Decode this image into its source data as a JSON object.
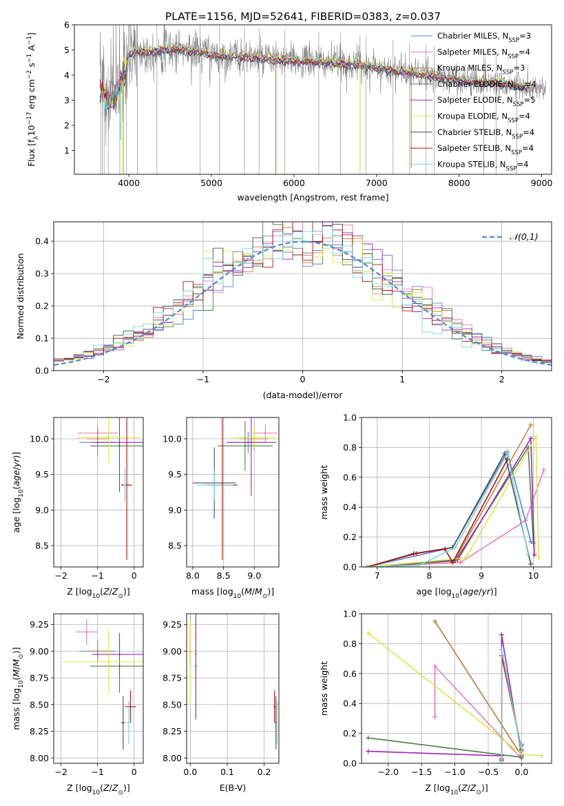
{
  "title": "PLATE=1156, MJD=52641, FIBERID=0383, z=0.037",
  "legend_entries": [
    {
      "key": "chabrier_miles",
      "label": "Chabrier MILES, N",
      "sub": "SSP",
      "tail": "=3",
      "color": "#5b7fdd"
    },
    {
      "key": "salpeter_miles",
      "label": "Salpeter MILES, N",
      "sub": "SSP",
      "tail": "=4",
      "color": "#e87bb1"
    },
    {
      "key": "kroupa_miles",
      "label": "Kroupa MILES, N",
      "sub": "SSP",
      "tail": "=3",
      "color": "#c8823e"
    },
    {
      "key": "chabrier_elodie",
      "label": "Chabrier ELODIE, N",
      "sub": "SSP",
      "tail": "=4",
      "color": "#4e7c4e"
    },
    {
      "key": "salpeter_elodie",
      "label": "Salpeter ELODIE, N",
      "sub": "SSP",
      "tail": "=5",
      "color": "#9b27b0"
    },
    {
      "key": "kroupa_elodie",
      "label": "Kroupa ELODIE, N",
      "sub": "SSP",
      "tail": "=4",
      "color": "#d7e84a"
    },
    {
      "key": "chabrier_stelib",
      "label": "Chabrier STELIB, N",
      "sub": "SSP",
      "tail": "=4",
      "color": "#4a4a4a"
    },
    {
      "key": "salpeter_stelib",
      "label": "Salpeter STELIB, N",
      "sub": "SSP",
      "tail": "=4",
      "color": "#b01010"
    },
    {
      "key": "kroupa_stelib",
      "label": "Kroupa STELIB, N",
      "sub": "SSP",
      "tail": "=4",
      "color": "#7ad8dc"
    }
  ],
  "data_color": "#808080",
  "chart_data": [
    {
      "id": "spectrum",
      "type": "line",
      "xlabel": "wavelength [Angstrom, rest frame]",
      "ylabel": "Flux [f_λ 10^-17 erg cm^-2 s^-1 A^-1]",
      "xlim": [
        3340,
        9120
      ],
      "ylim": [
        0.05,
        6.0
      ],
      "xticks": [
        4000,
        5000,
        6000,
        7000,
        8000,
        9000
      ],
      "yticks": [
        1,
        2,
        3,
        4,
        5,
        6
      ],
      "x_range_data": [
        3650,
        9050
      ],
      "x_range_models": [
        3650,
        8850
      ],
      "legend": "upper right",
      "grid": false,
      "continuum": {
        "x": [
          3650,
          3700,
          3800,
          3900,
          4000,
          4100,
          4200,
          4300,
          4400,
          4500,
          4600,
          4700,
          4800,
          4900,
          5000,
          5200,
          5400,
          5600,
          5800,
          6000,
          6200,
          6400,
          6600,
          6800,
          7000,
          7200,
          7400,
          7600,
          7800,
          8000,
          8200,
          8400,
          8600,
          8800,
          9000
        ],
        "y": [
          3.4,
          3.2,
          3.0,
          3.5,
          4.8,
          5.0,
          4.9,
          4.95,
          5.0,
          5.0,
          5.05,
          5.0,
          4.95,
          4.9,
          4.8,
          4.75,
          4.75,
          4.65,
          4.6,
          4.55,
          4.55,
          4.5,
          4.45,
          4.4,
          4.3,
          4.2,
          4.1,
          4.0,
          3.9,
          3.8,
          3.75,
          3.7,
          3.65,
          3.5,
          3.4
        ]
      },
      "data_lines": [
        3662,
        3680,
        3700,
        3750,
        3890,
        3935,
        3969,
        4102,
        4340,
        4861,
        5100,
        5400,
        5577,
        5890,
        6300,
        6563,
        6800,
        6870,
        7200,
        7400,
        7600,
        7700,
        8300,
        8450,
        8700
      ],
      "model_dips": [
        {
          "model": "kroupa_miles",
          "x": 5780,
          "y": 0.05
        },
        {
          "model": "kroupa_miles",
          "x": 7420,
          "y": 0.3
        },
        {
          "model": "kroupa_elodie",
          "x": 6800,
          "y": 0.05
        },
        {
          "model": "kroupa_elodie",
          "x": 3920,
          "y": 0.05
        },
        {
          "model": "kroupa_stelib",
          "x": 3900,
          "y": 1.4
        }
      ]
    },
    {
      "id": "residuals",
      "type": "histogram",
      "xlabel": "(data-model)/error",
      "ylabel": "Normed distribution",
      "xlim": [
        -2.5,
        2.5
      ],
      "ylim": [
        0,
        0.46
      ],
      "xticks": [
        -2,
        -1,
        0,
        1,
        2
      ],
      "yticks": [
        0.0,
        0.1,
        0.2,
        0.3,
        0.4
      ],
      "bin_width": 0.1,
      "bins": 50,
      "grid": true,
      "legend": "upper right",
      "reference": {
        "label": "𝒩(0,1)",
        "color": "#5b8bd8",
        "style": "dashed"
      }
    },
    {
      "id": "age_vs_Z",
      "type": "scatter",
      "xlabel": "Z [log10(Z/Z⊙)]",
      "ylabel": "age  [log10(age/yr)]",
      "xlim": [
        -2.2,
        0.25
      ],
      "ylim": [
        8.2,
        10.3
      ],
      "xticks": [
        -2,
        -1,
        0
      ],
      "yticks": [
        8.5,
        9.0,
        9.5,
        10.0
      ],
      "grid": true,
      "points": [
        {
          "model": "chabrier_miles",
          "x": -1.0,
          "xerr": 0.5,
          "y": 9.95,
          "yerr": 0.2
        },
        {
          "model": "salpeter_miles",
          "x": -1.0,
          "xerr": 0.55,
          "y": 10.08,
          "yerr": 0.1
        },
        {
          "model": "kroupa_miles",
          "x": -1.0,
          "xerr": 0.3,
          "y": 10.0,
          "yerr": 0.15
        },
        {
          "model": "chabrier_elodie",
          "x": -0.4,
          "xerr": 0.8,
          "y": 9.9,
          "yerr": 0.1
        },
        {
          "model": "salpeter_elodie",
          "x": -0.4,
          "xerr": 0.75,
          "y": 9.95,
          "yerr": 0.7
        },
        {
          "model": "kroupa_elodie",
          "x": -0.7,
          "xerr": 0.85,
          "y": 10.02,
          "yerr": 0.35
        },
        {
          "model": "chabrier_stelib",
          "x": -0.25,
          "xerr": 0.1,
          "y": 9.35,
          "yerr": 0.2
        },
        {
          "model": "salpeter_stelib",
          "x": -0.2,
          "xerr": 0.15,
          "y": 9.35,
          "yerr": 1.05
        },
        {
          "model": "kroupa_stelib",
          "x": -0.25,
          "xerr": 0.05,
          "y": 9.35,
          "yerr": 0.25
        }
      ]
    },
    {
      "id": "age_vs_mass",
      "type": "scatter",
      "xlabel": "mass [log10(M/M⊙)]",
      "ylabel": "",
      "xlim": [
        7.9,
        9.4
      ],
      "ylim": [
        8.2,
        10.3
      ],
      "xticks": [
        8.0,
        8.5,
        9.0
      ],
      "yticks": [
        8.5,
        9.0,
        9.5,
        10.0
      ],
      "grid": true,
      "points": [
        {
          "model": "chabrier_miles",
          "x": 8.9,
          "xerr": 0.3,
          "y": 9.95,
          "yerr": 0.15
        },
        {
          "model": "salpeter_miles",
          "x": 9.18,
          "xerr": 0.2,
          "y": 10.08,
          "yerr": 0.12
        },
        {
          "model": "kroupa_miles",
          "x": 9.0,
          "xerr": 0.22,
          "y": 10.0,
          "yerr": 0.15
        },
        {
          "model": "chabrier_elodie",
          "x": 8.85,
          "xerr": 0.45,
          "y": 9.9,
          "yerr": 0.35
        },
        {
          "model": "salpeter_elodie",
          "x": 8.95,
          "xerr": 0.4,
          "y": 9.95,
          "yerr": 0.75
        },
        {
          "model": "kroupa_elodie",
          "x": 9.0,
          "xerr": 0.35,
          "y": 10.02,
          "yerr": 0.15
        },
        {
          "model": "chabrier_stelib",
          "x": 8.35,
          "xerr": 0.35,
          "y": 9.38,
          "yerr": 0.5
        },
        {
          "model": "salpeter_stelib",
          "x": 8.48,
          "xerr": 0.25,
          "y": 9.35,
          "yerr": 1.05
        },
        {
          "model": "kroupa_stelib",
          "x": 8.35,
          "xerr": 0.3,
          "y": 9.35,
          "yerr": 0.2
        }
      ]
    },
    {
      "id": "weight_vs_age",
      "type": "line",
      "xlabel": "age  [log10(age/yr)]",
      "ylabel": "mass weight",
      "xlim": [
        6.7,
        10.35
      ],
      "ylim": [
        0,
        1
      ],
      "xticks": [
        7,
        8,
        9,
        10
      ],
      "yticks": [
        0.0,
        0.2,
        0.4,
        0.6,
        0.8,
        1.0
      ],
      "grid": true,
      "series": [
        {
          "model": "chabrier_miles",
          "x": [
            6.8,
            8.45,
            9.5,
            9.95
          ],
          "y": [
            0.0,
            0.13,
            0.77,
            0.17
          ]
        },
        {
          "model": "salpeter_miles",
          "x": [
            6.8,
            8.6,
            9.85,
            10.2
          ],
          "y": [
            0.0,
            0.03,
            0.31,
            0.65
          ]
        },
        {
          "model": "kroupa_miles",
          "x": [
            6.8,
            8.5,
            9.95
          ],
          "y": [
            0.0,
            0.05,
            0.95
          ]
        },
        {
          "model": "chabrier_elodie",
          "x": [
            6.8,
            8.5,
            9.9,
            10.0
          ],
          "y": [
            0.0,
            0.04,
            0.8,
            0.16
          ]
        },
        {
          "model": "salpeter_elodie",
          "x": [
            6.8,
            8.55,
            9.95,
            10.02
          ],
          "y": [
            0.0,
            0.05,
            0.86,
            0.08
          ]
        },
        {
          "model": "kroupa_elodie",
          "x": [
            6.8,
            8.7,
            10.05,
            10.1
          ],
          "y": [
            0.0,
            0.06,
            0.87,
            0.06
          ]
        },
        {
          "model": "chabrier_stelib",
          "x": [
            6.8,
            7.7,
            8.45,
            9.45,
            9.95
          ],
          "y": [
            0.0,
            0.09,
            0.13,
            0.76,
            0.02
          ]
        },
        {
          "model": "salpeter_stelib",
          "x": [
            6.8,
            7.75,
            8.3,
            8.45,
            9.5
          ],
          "y": [
            0.0,
            0.09,
            0.12,
            0.03,
            0.72
          ]
        },
        {
          "model": "kroupa_stelib",
          "x": [
            6.8,
            7.8,
            8.5,
            9.5,
            9.9
          ],
          "y": [
            0.0,
            0.01,
            0.13,
            0.76,
            0.08
          ]
        }
      ]
    },
    {
      "id": "mass_vs_Z",
      "type": "scatter",
      "xlabel": "Z [log10(Z/Z⊙)]",
      "ylabel": "mass [log10(M/M⊙)]",
      "xlim": [
        -2.2,
        0.25
      ],
      "ylim": [
        7.95,
        9.35
      ],
      "xticks": [
        -2,
        -1,
        0
      ],
      "yticks": [
        8.0,
        8.25,
        8.5,
        8.75,
        9.0,
        9.25
      ],
      "grid": true,
      "points": [
        {
          "model": "chabrier_miles",
          "x": -1.0,
          "xerr": 0.5,
          "y": 9.0,
          "yerr": 0.1
        },
        {
          "model": "salpeter_miles",
          "x": -1.3,
          "xerr": 0.3,
          "y": 9.18,
          "yerr": 0.12
        },
        {
          "model": "kroupa_miles",
          "x": -1.0,
          "xerr": 0.3,
          "y": 9.0,
          "yerr": 0.1
        },
        {
          "model": "chabrier_elodie",
          "x": -0.4,
          "xerr": 0.8,
          "y": 8.86,
          "yerr": 0.25
        },
        {
          "model": "salpeter_elodie",
          "x": -0.4,
          "xerr": 0.75,
          "y": 8.97,
          "yerr": 0.2
        },
        {
          "model": "kroupa_elodie",
          "x": -0.7,
          "xerr": 1.3,
          "y": 8.9,
          "yerr": 0.3
        },
        {
          "model": "chabrier_stelib",
          "x": -0.3,
          "xerr": 0.05,
          "y": 8.33,
          "yerr": 0.25
        },
        {
          "model": "salpeter_stelib",
          "x": -0.1,
          "xerr": 0.15,
          "y": 8.48,
          "yerr": 0.15
        },
        {
          "model": "kroupa_stelib",
          "x": -0.15,
          "xerr": 0.08,
          "y": 8.33,
          "yerr": 0.2
        }
      ]
    },
    {
      "id": "mass_vs_ebv",
      "type": "scatter",
      "xlabel": "E(B-V)",
      "ylabel": "",
      "xlim": [
        -0.01,
        0.24
      ],
      "ylim": [
        7.95,
        9.35
      ],
      "xticks": [
        0.0,
        0.1,
        0.2
      ],
      "yticks": [
        8.0,
        8.25,
        8.5,
        8.75,
        9.0,
        9.25
      ],
      "grid": true,
      "points": [
        {
          "model": "chabrier_miles",
          "x": 0.0,
          "y": 9.0,
          "yerr": 0.15
        },
        {
          "model": "salpeter_miles",
          "x": 0.0,
          "y": 9.18,
          "yerr": 0.15
        },
        {
          "model": "kroupa_miles",
          "x": 0.0,
          "y": 9.0,
          "yerr": 0.12
        },
        {
          "model": "chabrier_elodie",
          "x": 0.015,
          "y": 8.86,
          "yerr": 0.5
        },
        {
          "model": "salpeter_elodie",
          "x": 0.015,
          "y": 8.97,
          "yerr": 0.6
        },
        {
          "model": "kroupa_elodie",
          "x": 0.0,
          "y": 8.9,
          "yerr": 0.4
        },
        {
          "model": "chabrier_stelib",
          "x": 0.232,
          "y": 8.33,
          "yerr": 0.25
        },
        {
          "model": "salpeter_stelib",
          "x": 0.228,
          "y": 8.48,
          "yerr": 0.15
        },
        {
          "model": "kroupa_stelib",
          "x": 0.235,
          "y": 8.33,
          "yerr": 0.2
        }
      ]
    },
    {
      "id": "weight_vs_Z",
      "type": "line",
      "xlabel": "Z [log10(Z/Z⊙)]",
      "ylabel": "mass weight",
      "xlim": [
        -2.4,
        0.45
      ],
      "ylim": [
        0,
        1
      ],
      "xticks": [
        -2.0,
        -1.5,
        -1.0,
        -0.5,
        0.0
      ],
      "yticks": [
        0.0,
        0.2,
        0.4,
        0.6,
        0.8,
        1.0
      ],
      "grid": true,
      "series": [
        {
          "model": "chabrier_miles",
          "x": [
            -1.3,
            0.0,
            0.0
          ],
          "y": [
            0.95,
            0.05,
            0.13
          ]
        },
        {
          "model": "salpeter_miles",
          "x": [
            -1.3,
            -1.3,
            0.0,
            0.0
          ],
          "y": [
            0.31,
            0.65,
            0.03,
            0.08
          ]
        },
        {
          "model": "kroupa_miles",
          "x": [
            -1.3,
            0.0,
            0.0
          ],
          "y": [
            0.95,
            0.05,
            0.08
          ]
        },
        {
          "model": "chabrier_elodie",
          "x": [
            -2.3,
            0.0,
            0.0
          ],
          "y": [
            0.17,
            0.04,
            0.12
          ]
        },
        {
          "model": "salpeter_elodie",
          "x": [
            -2.3,
            -0.3,
            -0.3,
            0.0
          ],
          "y": [
            0.08,
            0.05,
            0.86,
            0.05
          ]
        },
        {
          "model": "kroupa_elodie",
          "x": [
            -2.3,
            0.0,
            0.3
          ],
          "y": [
            0.87,
            0.06,
            0.05
          ]
        },
        {
          "model": "chabrier_stelib",
          "x": [
            -0.3,
            -0.3,
            0.0,
            0.0
          ],
          "y": [
            0.02,
            0.76,
            0.09,
            0.13
          ]
        },
        {
          "model": "salpeter_stelib",
          "x": [
            -0.3,
            -0.3,
            0.0,
            0.0
          ],
          "y": [
            0.03,
            0.72,
            0.09,
            0.12
          ]
        },
        {
          "model": "kroupa_stelib",
          "x": [
            -0.3,
            -0.3,
            0.0,
            0.0
          ],
          "y": [
            0.01,
            0.76,
            0.08,
            0.13
          ]
        }
      ]
    }
  ]
}
